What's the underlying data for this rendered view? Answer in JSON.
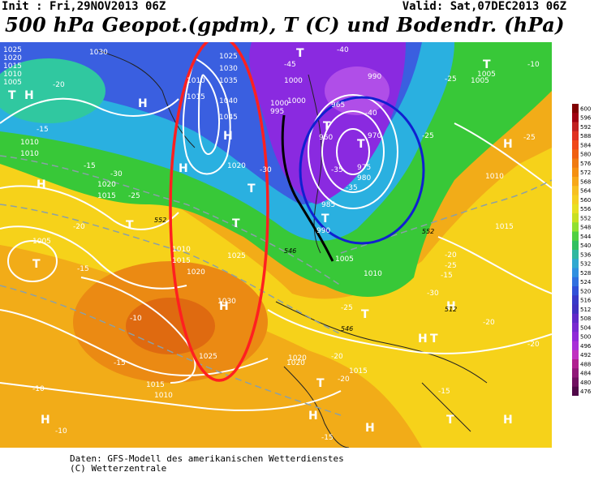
{
  "header": {
    "init": "Init : Fri,29NOV2013 06Z",
    "valid": "Valid: Sat,07DEC2013 06Z",
    "title": "500 hPa Geopot.(gpdm), T (C) und Bodendr. (hPa)"
  },
  "footer": {
    "line1": "Daten: GFS-Modell des amerikanischen Wetterdienstes",
    "line2": "(C) Wetterzentrale"
  },
  "colors": {
    "low_purple": "#7a1fd0",
    "green": "#33cc33",
    "yellow": "#f6d21a",
    "orange": "#f08a10",
    "red_oval": "#ff2020",
    "blue_oval": "#1020d0"
  },
  "colorbar": {
    "labels": [
      "600",
      "596",
      "592",
      "588",
      "584",
      "580",
      "576",
      "572",
      "568",
      "564",
      "560",
      "556",
      "552",
      "548",
      "544",
      "540",
      "536",
      "532",
      "528",
      "524",
      "520",
      "516",
      "512",
      "508",
      "504",
      "500",
      "496",
      "492",
      "488",
      "484",
      "480",
      "476"
    ]
  },
  "map_labels": {
    "pressure": [
      "1030",
      "1025",
      "1020",
      "1015",
      "1010",
      "1005",
      "1000",
      "995",
      "990",
      "985",
      "980",
      "975",
      "970",
      "965",
      "960",
      "1035",
      "1040",
      "1045",
      "1030",
      "1025",
      "1020",
      "1015",
      "1010",
      "1005",
      "1000",
      "1020",
      "1015",
      "1010",
      "1010",
      "1005",
      "1010",
      "1015",
      "1020",
      "1025",
      "1030",
      "1025",
      "1020",
      "1015",
      "1010",
      "1005",
      "1000",
      "990",
      "1015",
      "1010",
      "1005",
      "1010",
      "1015",
      "1020"
    ],
    "temps": [
      "-45",
      "-40",
      "-35",
      "-30",
      "-25",
      "-20",
      "-15",
      "-10",
      "-10",
      "-15",
      "-20",
      "-25",
      "-30",
      "-35",
      "-40",
      "-25",
      "-20",
      "-15",
      "-25",
      "-30",
      "-20",
      "-15",
      "-10",
      "-20",
      "-15",
      "-15",
      "-20",
      "-25",
      "-25",
      "-20",
      "-15",
      "-10"
    ],
    "centers_H": [
      "H",
      "H",
      "H",
      "H",
      "H",
      "H",
      "H",
      "H",
      "H",
      "H",
      "H",
      "H",
      "H"
    ],
    "centers_T": [
      "T",
      "T",
      "T",
      "T",
      "T",
      "T",
      "T",
      "T",
      "T",
      "T",
      "T",
      "T",
      "T",
      "T"
    ],
    "height_marks": [
      "552",
      "552",
      "546",
      "546",
      "512"
    ]
  }
}
